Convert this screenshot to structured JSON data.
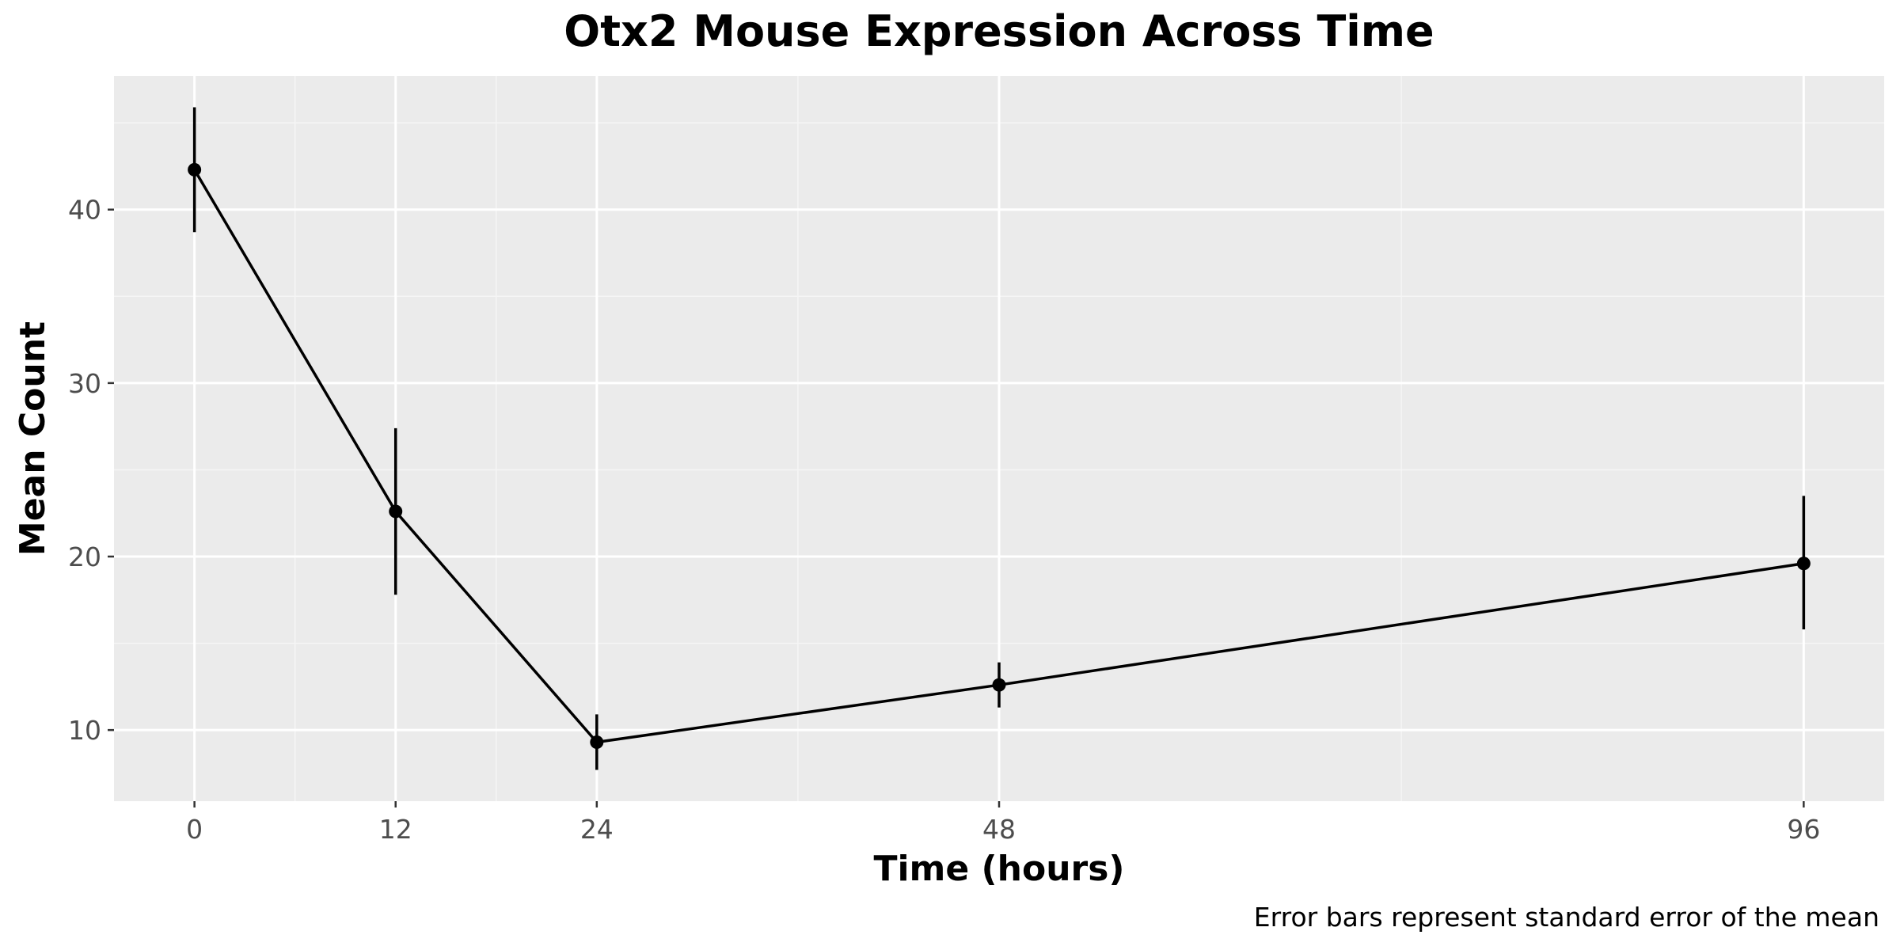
{
  "chart_data": {
    "type": "line",
    "title": "Otx2 Mouse Expression Across Time",
    "xlabel": "Time (hours)",
    "ylabel": "Mean Count",
    "caption": "Error bars represent standard error of the mean",
    "x": [
      0,
      12,
      24,
      48,
      96
    ],
    "series": [
      {
        "values": [
          42.3,
          22.6,
          9.3,
          12.6,
          19.6
        ],
        "error_low": [
          38.7,
          17.8,
          7.7,
          11.3,
          15.8
        ],
        "error_high": [
          45.9,
          27.4,
          10.9,
          13.9,
          23.5
        ]
      }
    ],
    "x_ticks": [
      0,
      12,
      24,
      48,
      96
    ],
    "y_ticks": [
      10,
      20,
      30,
      40
    ],
    "xlim": [
      -4.8,
      100.8
    ],
    "ylim": [
      5.9,
      47.7
    ],
    "grid": true,
    "legend": "none",
    "colors": {
      "panel": "#ebebeb",
      "grid_major": "#ffffff",
      "grid_minor": "#f5f5f5",
      "line": "#000000",
      "tick_label": "#4d4d4d"
    }
  }
}
